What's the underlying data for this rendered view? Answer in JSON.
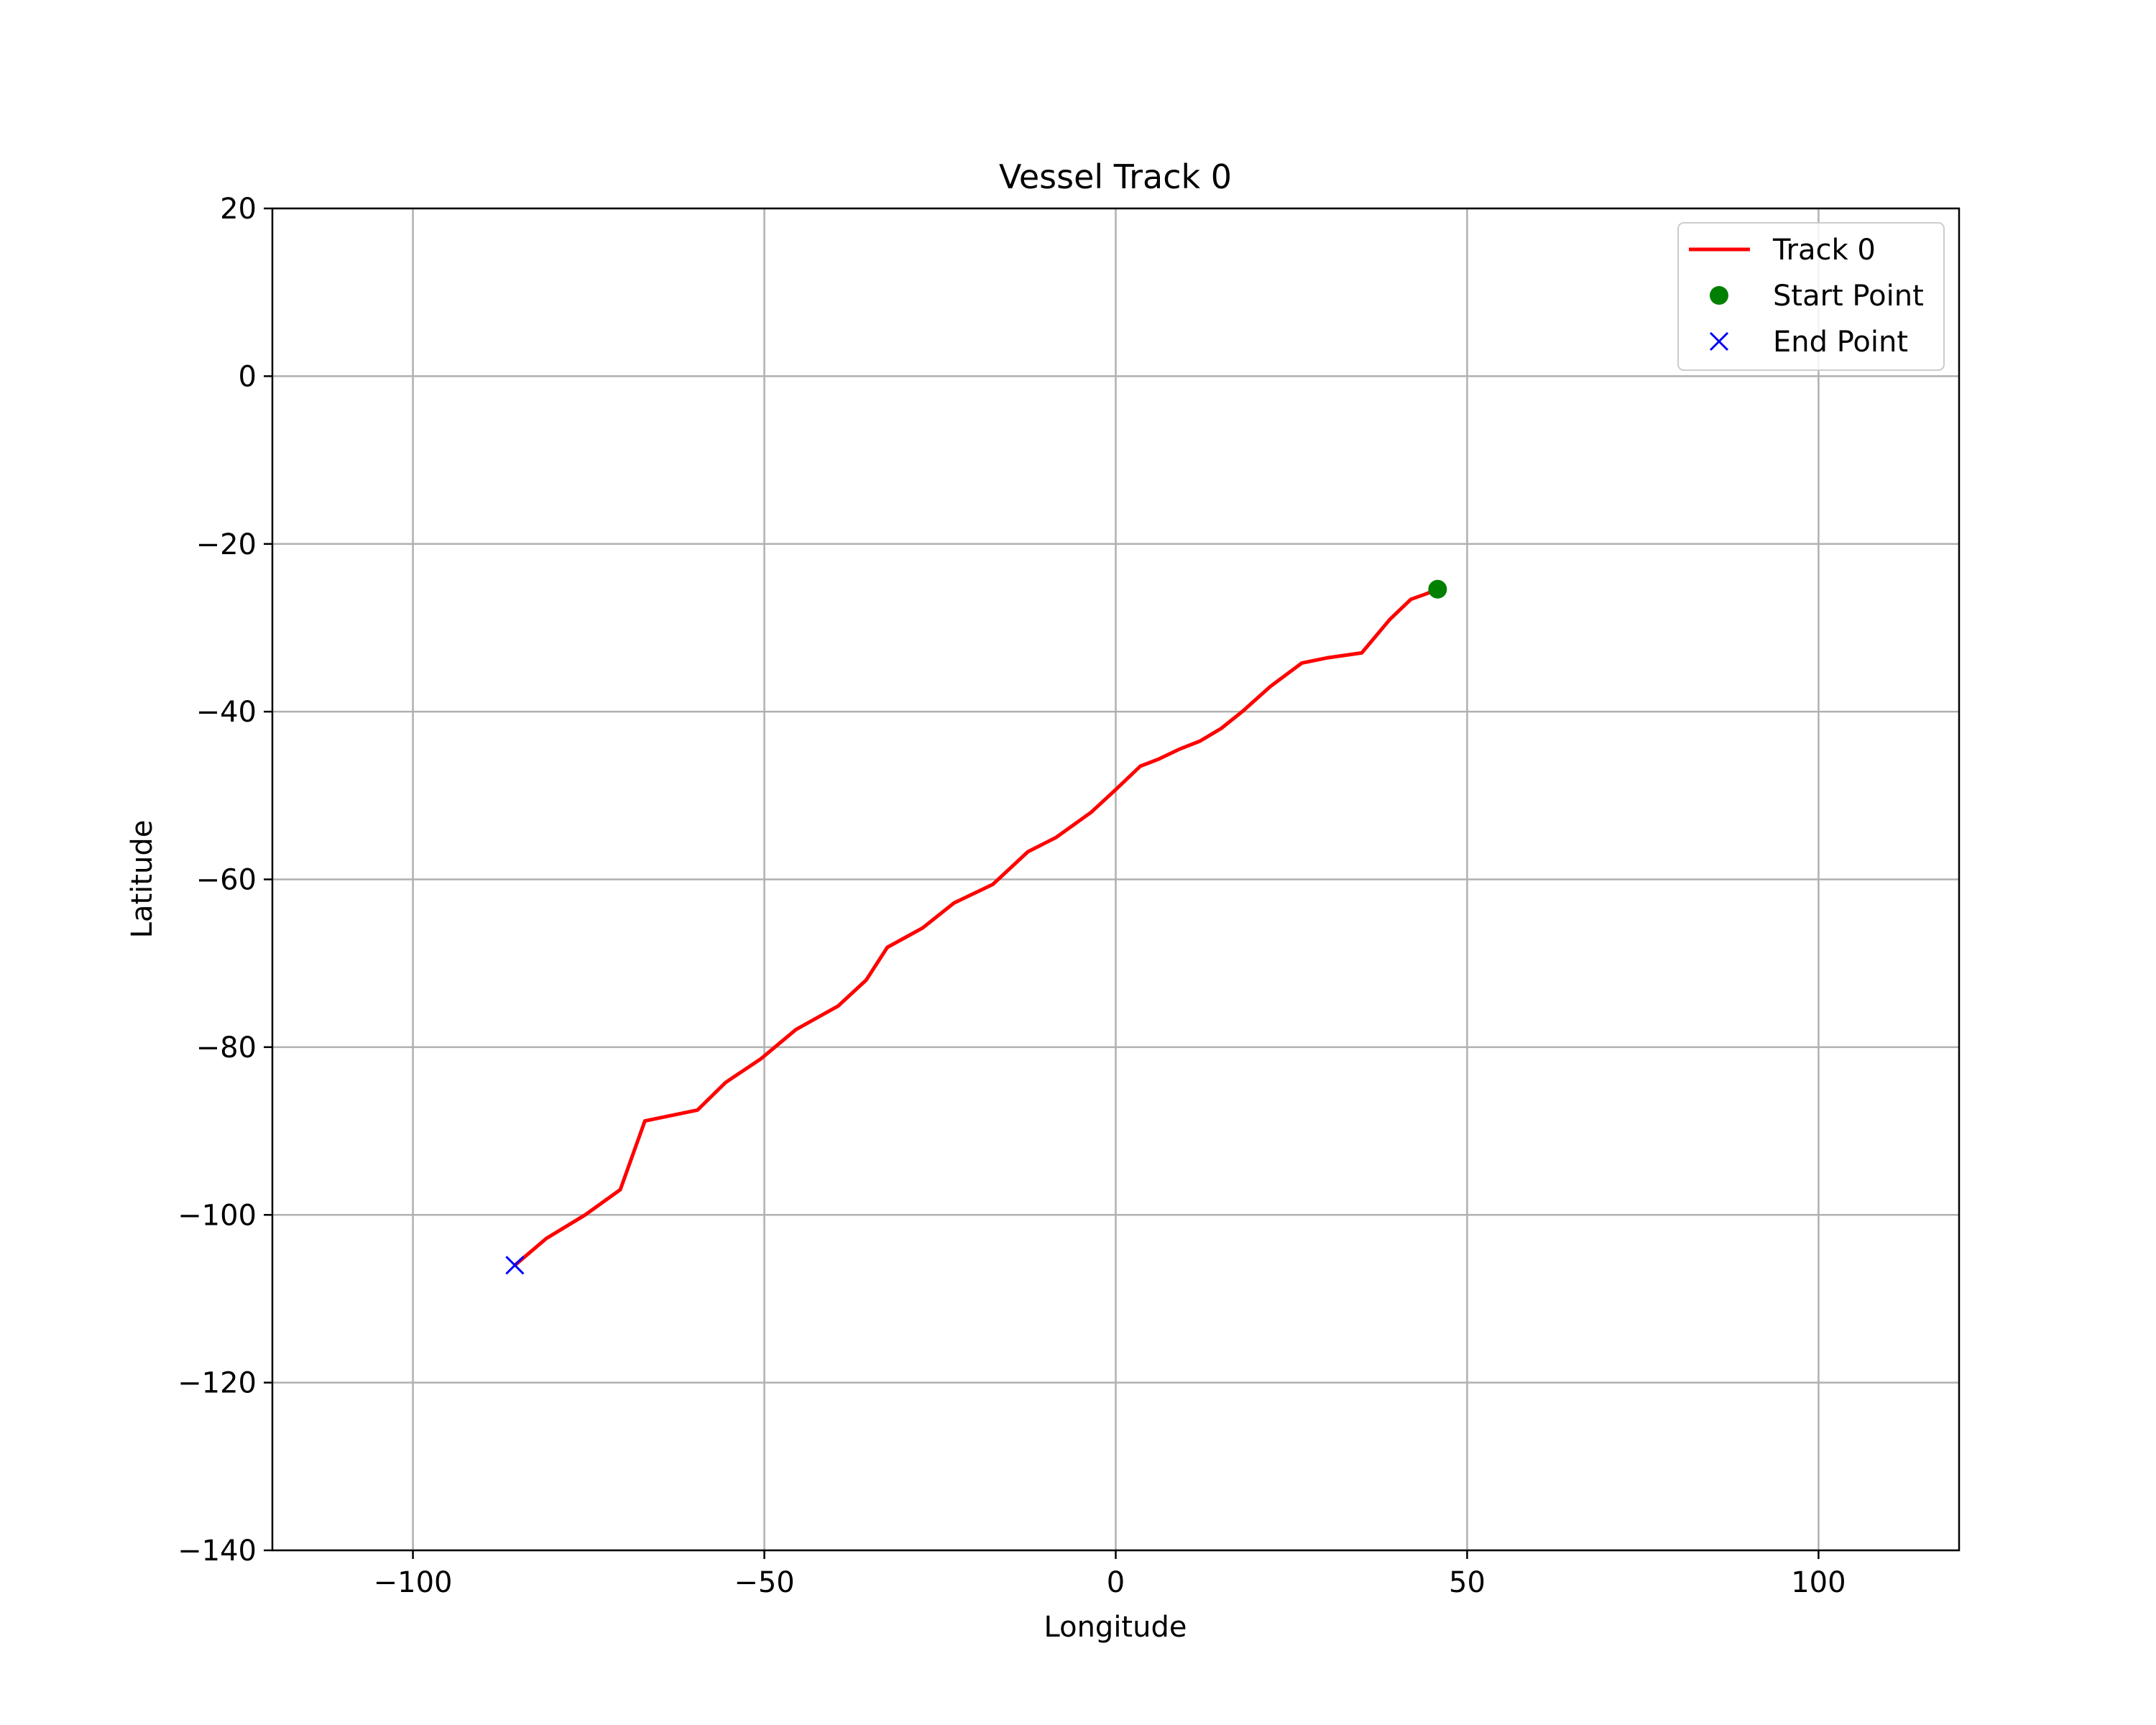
{
  "chart_data": {
    "type": "line",
    "title": "Vessel Track 0",
    "xlabel": "Longitude",
    "ylabel": "Latitude",
    "xlim": [
      -120,
      120
    ],
    "ylim": [
      -140,
      20
    ],
    "xticks": [
      -100,
      -50,
      0,
      50,
      100
    ],
    "yticks": [
      20,
      0,
      -20,
      -40,
      -60,
      -80,
      -100,
      -120,
      -140
    ],
    "grid": true,
    "legend_position": "top-right",
    "series": [
      {
        "name": "Track 0",
        "color": "#ff0000",
        "x": [
          45.8,
          44,
          42,
          39,
          35,
          30,
          26.5,
          22,
          18,
          15,
          12,
          9,
          6,
          3.5,
          0,
          -3.5,
          -8.5,
          -12.5,
          -17.5,
          -23,
          -27.5,
          -32.5,
          -35.5,
          -39.5,
          -45.5,
          -50.5,
          -55.5,
          -59.5,
          -67,
          -69,
          -70.5,
          -75.5,
          -81,
          -85.5
        ],
        "y": [
          -25.4,
          -26,
          -26.6,
          -29,
          -33,
          -33.6,
          -34.2,
          -37,
          -40,
          -42,
          -43.5,
          -44.5,
          -45.7,
          -46.5,
          -49.3,
          -52,
          -55,
          -56.7,
          -60.6,
          -62.8,
          -65.8,
          -68.1,
          -72,
          -75.1,
          -77.9,
          -81.4,
          -84.2,
          -87.5,
          -88.8,
          -93.5,
          -97,
          -100,
          -102.8,
          -106
        ]
      }
    ],
    "markers": [
      {
        "name": "Start Point",
        "symbol": "circle",
        "color": "#008000",
        "x": 45.8,
        "y": -25.4
      },
      {
        "name": "End Point",
        "symbol": "x",
        "color": "#0000ff",
        "x": -85.5,
        "y": -106
      }
    ]
  }
}
